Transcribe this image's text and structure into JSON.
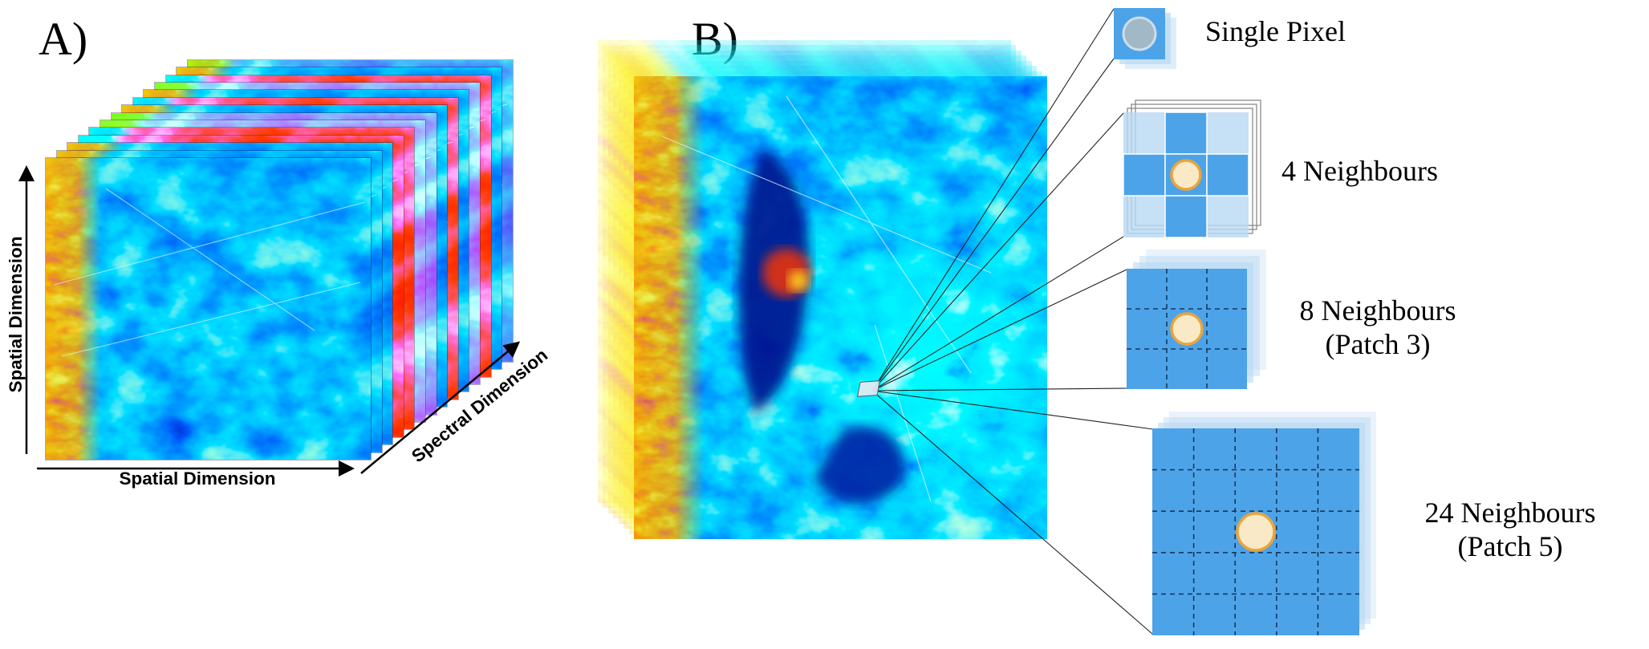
{
  "panel_a": {
    "label": "A)",
    "y_axis_label": "Spatial Dimension",
    "x_axis_label": "Spatial Dimension",
    "z_axis_label": "Spectral Dimension"
  },
  "panel_b": {
    "label": "B)"
  },
  "legend": {
    "single_pixel": {
      "label": "Single Pixel"
    },
    "four_neighbours": {
      "label": "4 Neighbours"
    },
    "eight_neighbours": {
      "label": "8 Neighbours",
      "sublabel": "(Patch 3)"
    },
    "twentyfour_neighbours": {
      "label": "24 Neighbours",
      "sublabel": "(Patch 5)"
    }
  },
  "colors": {
    "patch_blue": "#4da3e8",
    "patch_ghost": "#b8d8f2",
    "neighbour_circle_fill": "#f9e9c6",
    "neighbour_circle_border": "#eaa43c",
    "single_pixel_circle_fill": "#a2b8c6",
    "single_pixel_circle_border": "#cfdde8",
    "connector_line": "#222222",
    "axis_color": "#000000"
  }
}
